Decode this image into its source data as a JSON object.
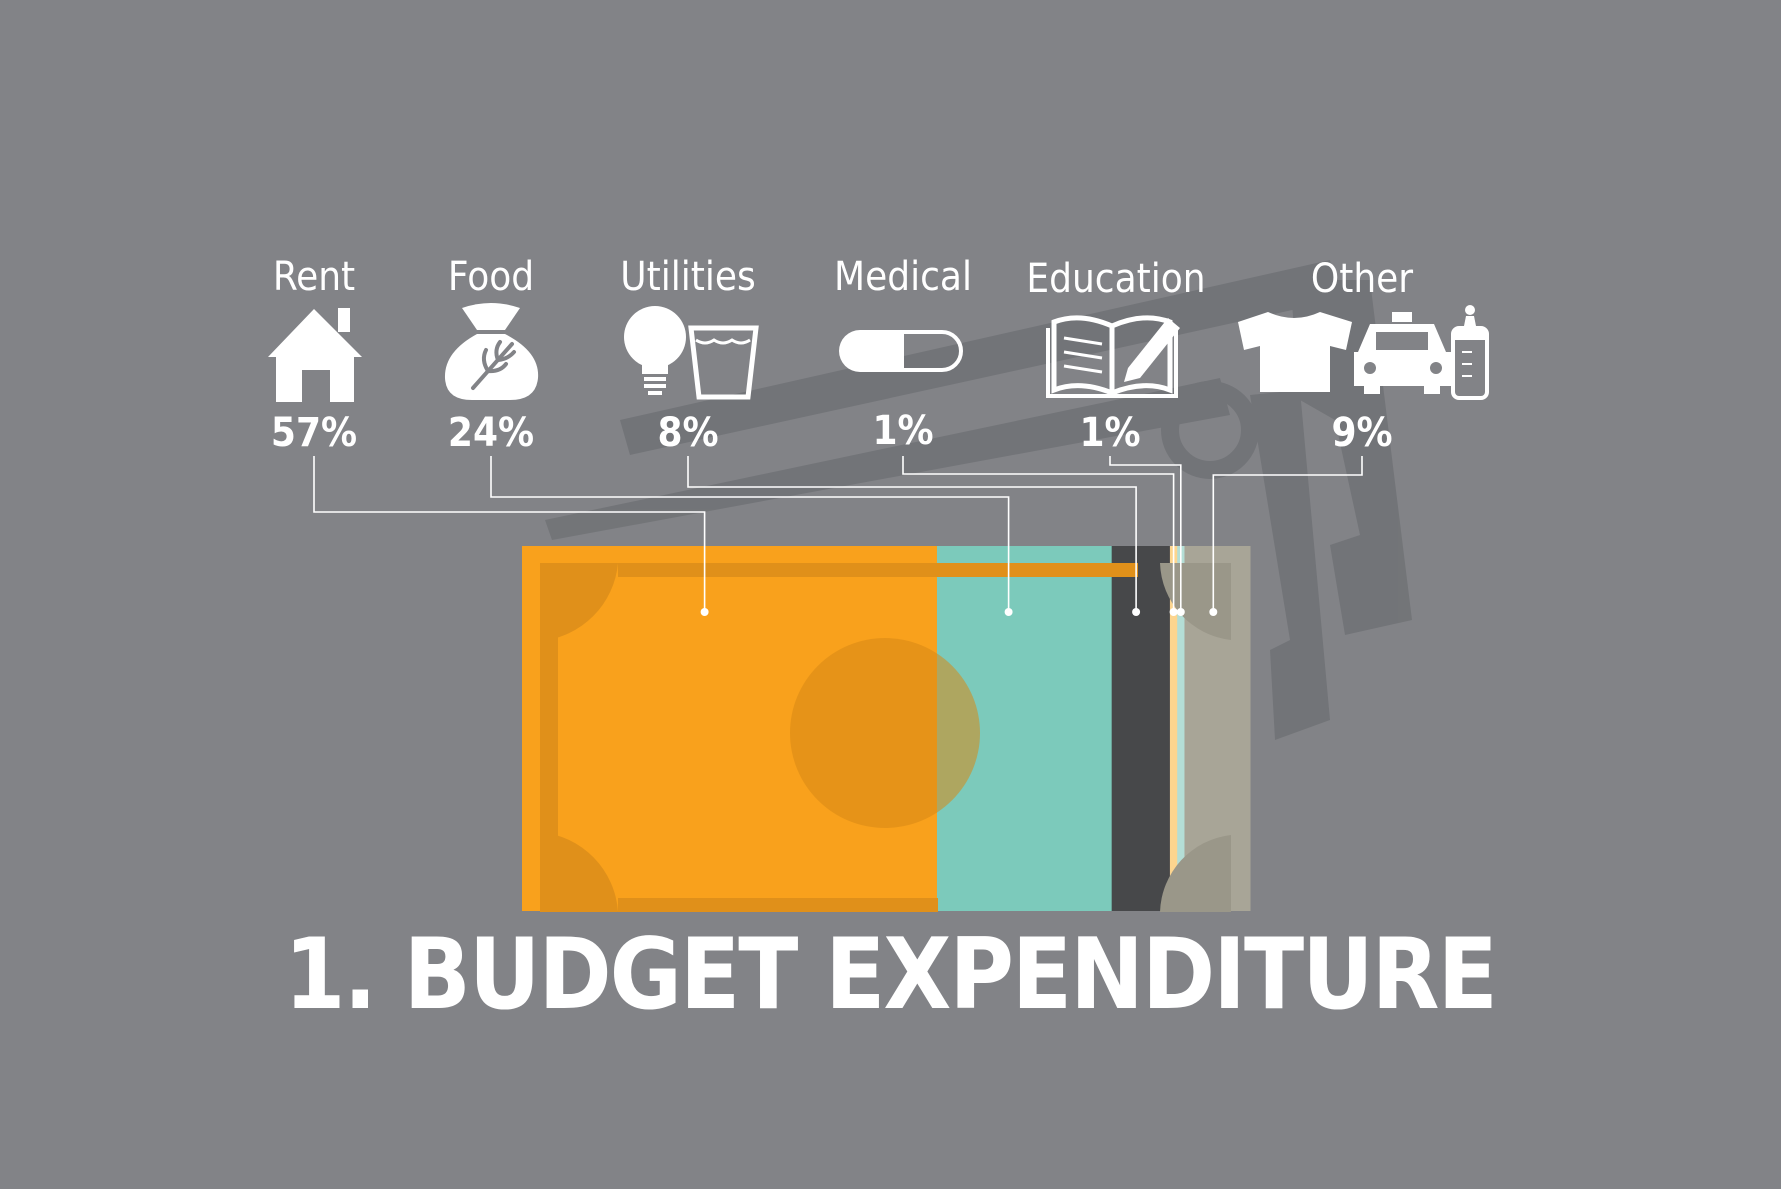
{
  "colors": {
    "background": "#828387",
    "rent": "#f9a11c",
    "food": "#7ccabb",
    "utilities": "#47484a",
    "medical": "#fcd58f",
    "education": "#b4ded6",
    "other": "#a8a597",
    "leader": "#ffffff",
    "gun_shadow": "#6f7174"
  },
  "chart_data": {
    "type": "bar",
    "layout": "stacked-horizontal",
    "title": "1. BUDGET EXPENDITURE",
    "categories": [
      "Rent",
      "Food",
      "Utilities",
      "Medical",
      "Education",
      "Other"
    ],
    "values": [
      57,
      24,
      8,
      1,
      1,
      9
    ],
    "value_labels": [
      "57%",
      "24%",
      "8%",
      "1%",
      "1%",
      "9%"
    ],
    "unit": "%",
    "icons": [
      "house-icon",
      "grain-sack-icon",
      "lightbulb-water-icon",
      "pill-icon",
      "book-pencil-icon",
      "shirt-taxi-bottle-icon"
    ],
    "series_colors": [
      "#f9a11c",
      "#7ccabb",
      "#47484a",
      "#fcd58f",
      "#b4ded6",
      "#a8a597"
    ],
    "legend": "none",
    "grid": false
  }
}
